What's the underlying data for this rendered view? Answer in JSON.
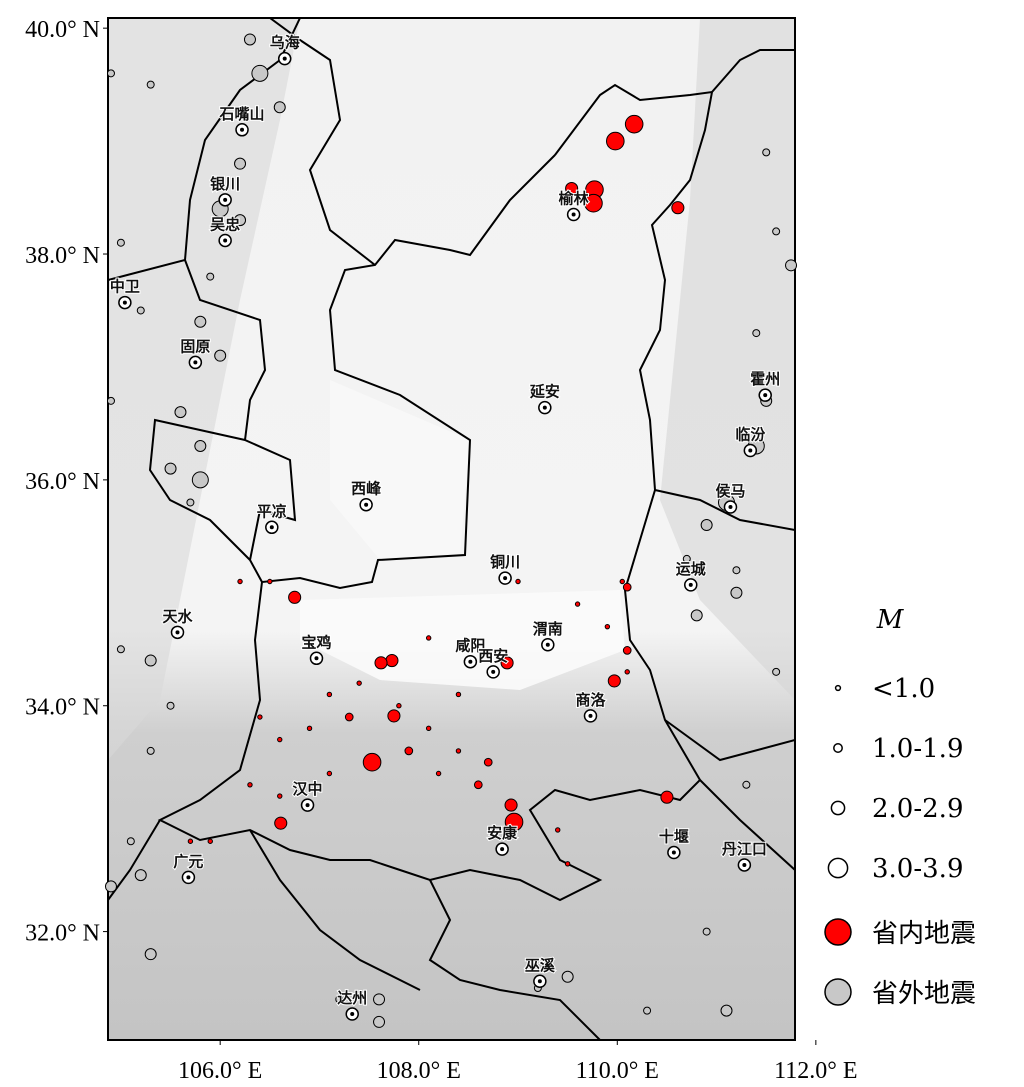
{
  "map": {
    "lon_range": [
      104.87,
      111.79
    ],
    "lat_range": [
      31.04,
      40.09
    ],
    "lon_ticks": [
      {
        "value": 106,
        "label": "106.0° E"
      },
      {
        "value": 108,
        "label": "108.0° E"
      },
      {
        "value": 110,
        "label": "110.0° E"
      },
      {
        "value": 112,
        "label": "112.0° E"
      }
    ],
    "lat_ticks": [
      {
        "value": 32,
        "label": "32.0° N"
      },
      {
        "value": 34,
        "label": "34.0° N"
      },
      {
        "value": 36,
        "label": "36.0° N"
      },
      {
        "value": 38,
        "label": "38.0° N"
      },
      {
        "value": 40,
        "label": "40.0° N"
      }
    ],
    "cities": [
      {
        "name": "乌海",
        "lon": 106.65,
        "lat": 39.73
      },
      {
        "name": "石嘴山",
        "lon": 106.22,
        "lat": 39.1
      },
      {
        "name": "银川",
        "lon": 106.05,
        "lat": 38.48
      },
      {
        "name": "吴忠",
        "lon": 106.05,
        "lat": 38.12
      },
      {
        "name": "中卫",
        "lon": 105.04,
        "lat": 37.57
      },
      {
        "name": "固原",
        "lon": 105.75,
        "lat": 37.04
      },
      {
        "name": "平凉",
        "lon": 106.52,
        "lat": 35.58
      },
      {
        "name": "西峰",
        "lon": 107.47,
        "lat": 35.78
      },
      {
        "name": "延安",
        "lon": 109.27,
        "lat": 36.64
      },
      {
        "name": "榆林",
        "lon": 109.56,
        "lat": 38.35
      },
      {
        "name": "铜川",
        "lon": 108.87,
        "lat": 35.13
      },
      {
        "name": "渭南",
        "lon": 109.3,
        "lat": 34.54
      },
      {
        "name": "咸阳",
        "lon": 108.52,
        "lat": 34.39
      },
      {
        "name": "西安",
        "lon": 108.75,
        "lat": 34.3
      },
      {
        "name": "宝鸡",
        "lon": 106.97,
        "lat": 34.42
      },
      {
        "name": "天水",
        "lon": 105.57,
        "lat": 34.65
      },
      {
        "name": "商洛",
        "lon": 109.73,
        "lat": 33.91
      },
      {
        "name": "汉中",
        "lon": 106.88,
        "lat": 33.12
      },
      {
        "name": "安康",
        "lon": 108.84,
        "lat": 32.73
      },
      {
        "name": "十堰",
        "lon": 110.57,
        "lat": 32.7
      },
      {
        "name": "丹江口",
        "lon": 111.28,
        "lat": 32.59
      },
      {
        "name": "广元",
        "lon": 105.68,
        "lat": 32.48
      },
      {
        "name": "达州",
        "lon": 107.33,
        "lat": 31.27
      },
      {
        "name": "巫溪",
        "lon": 109.22,
        "lat": 31.56
      },
      {
        "name": "运城",
        "lon": 110.74,
        "lat": 35.07
      },
      {
        "name": "临汾",
        "lon": 111.34,
        "lat": 36.26
      },
      {
        "name": "霍州",
        "lon": 111.49,
        "lat": 36.75
      },
      {
        "name": "侯马",
        "lon": 111.14,
        "lat": 35.76
      }
    ],
    "quakes": {
      "inside": [
        {
          "lon": 110.17,
          "lat": 39.15,
          "m": 3.5
        },
        {
          "lon": 109.98,
          "lat": 39.0,
          "m": 3.2
        },
        {
          "lon": 109.77,
          "lat": 38.57,
          "m": 3.3
        },
        {
          "lon": 109.76,
          "lat": 38.45,
          "m": 3.3
        },
        {
          "lon": 109.54,
          "lat": 38.58,
          "m": 2.0
        },
        {
          "lon": 110.61,
          "lat": 38.41,
          "m": 2.3
        },
        {
          "lon": 107.73,
          "lat": 34.4,
          "m": 2.8
        },
        {
          "lon": 107.62,
          "lat": 34.38,
          "m": 2.6
        },
        {
          "lon": 108.89,
          "lat": 34.38,
          "m": 2.4
        },
        {
          "lon": 109.97,
          "lat": 34.22,
          "m": 2.3
        },
        {
          "lon": 107.75,
          "lat": 33.91,
          "m": 2.4
        },
        {
          "lon": 107.53,
          "lat": 33.5,
          "m": 3.4
        },
        {
          "lon": 108.96,
          "lat": 32.97,
          "m": 3.5
        },
        {
          "lon": 108.93,
          "lat": 33.12,
          "m": 2.4
        },
        {
          "lon": 106.75,
          "lat": 34.96,
          "m": 2.4
        },
        {
          "lon": 106.61,
          "lat": 32.96,
          "m": 2.2
        },
        {
          "lon": 110.5,
          "lat": 33.19,
          "m": 2.1
        },
        {
          "lon": 110.1,
          "lat": 34.49,
          "m": 1.8
        },
        {
          "lon": 106.4,
          "lat": 33.9,
          "m": 0.8
        },
        {
          "lon": 106.6,
          "lat": 33.7,
          "m": 0.8
        },
        {
          "lon": 106.9,
          "lat": 33.8,
          "m": 0.8
        },
        {
          "lon": 107.1,
          "lat": 34.1,
          "m": 0.8
        },
        {
          "lon": 107.3,
          "lat": 33.9,
          "m": 1.2
        },
        {
          "lon": 107.4,
          "lat": 34.2,
          "m": 0.8
        },
        {
          "lon": 107.8,
          "lat": 34.0,
          "m": 0.8
        },
        {
          "lon": 107.9,
          "lat": 33.6,
          "m": 1.2
        },
        {
          "lon": 108.1,
          "lat": 33.8,
          "m": 0.8
        },
        {
          "lon": 108.2,
          "lat": 33.4,
          "m": 0.8
        },
        {
          "lon": 108.4,
          "lat": 33.6,
          "m": 0.8
        },
        {
          "lon": 108.4,
          "lat": 34.1,
          "m": 0.8
        },
        {
          "lon": 108.6,
          "lat": 33.3,
          "m": 1.2
        },
        {
          "lon": 108.1,
          "lat": 34.6,
          "m": 0.8
        },
        {
          "lon": 109.6,
          "lat": 34.9,
          "m": 0.8
        },
        {
          "lon": 109.9,
          "lat": 34.7,
          "m": 0.8
        },
        {
          "lon": 110.1,
          "lat": 34.3,
          "m": 0.8
        },
        {
          "lon": 106.3,
          "lat": 33.3,
          "m": 0.8
        },
        {
          "lon": 106.6,
          "lat": 33.2,
          "m": 0.8
        },
        {
          "lon": 107.1,
          "lat": 33.4,
          "m": 0.8
        },
        {
          "lon": 109.4,
          "lat": 32.9,
          "m": 0.8
        },
        {
          "lon": 109.5,
          "lat": 32.6,
          "m": 0.8
        },
        {
          "lon": 106.2,
          "lat": 35.1,
          "m": 0.8
        },
        {
          "lon": 106.5,
          "lat": 35.1,
          "m": 0.8
        },
        {
          "lon": 110.1,
          "lat": 35.05,
          "m": 1.2
        },
        {
          "lon": 110.05,
          "lat": 35.1,
          "m": 0.8
        },
        {
          "lon": 105.9,
          "lat": 32.8,
          "m": 0.8
        },
        {
          "lon": 105.7,
          "lat": 32.8,
          "m": 0.8
        },
        {
          "lon": 108.7,
          "lat": 33.5,
          "m": 1.2
        },
        {
          "lon": 109.0,
          "lat": 35.1,
          "m": 0.8
        }
      ],
      "outside": [
        {
          "lon": 106.3,
          "lat": 39.9,
          "m": 2.8
        },
        {
          "lon": 106.4,
          "lat": 39.6,
          "m": 3.1
        },
        {
          "lon": 106.6,
          "lat": 39.3,
          "m": 2.9
        },
        {
          "lon": 106.2,
          "lat": 38.8,
          "m": 2.6
        },
        {
          "lon": 106.0,
          "lat": 38.4,
          "m": 3.2
        },
        {
          "lon": 106.2,
          "lat": 38.3,
          "m": 2.5
        },
        {
          "lon": 105.9,
          "lat": 37.8,
          "m": 1.5
        },
        {
          "lon": 105.8,
          "lat": 37.4,
          "m": 2.8
        },
        {
          "lon": 106.0,
          "lat": 37.1,
          "m": 2.5
        },
        {
          "lon": 105.6,
          "lat": 36.6,
          "m": 2.7
        },
        {
          "lon": 105.8,
          "lat": 36.3,
          "m": 2.4
        },
        {
          "lon": 105.5,
          "lat": 36.1,
          "m": 2.9
        },
        {
          "lon": 105.7,
          "lat": 35.8,
          "m": 1.5
        },
        {
          "lon": 104.9,
          "lat": 36.7,
          "m": 1.2
        },
        {
          "lon": 105.2,
          "lat": 37.5,
          "m": 1.4
        },
        {
          "lon": 105.0,
          "lat": 38.1,
          "m": 1.0
        },
        {
          "lon": 104.9,
          "lat": 39.6,
          "m": 1.5
        },
        {
          "lon": 105.3,
          "lat": 39.5,
          "m": 1.6
        },
        {
          "lon": 104.9,
          "lat": 32.4,
          "m": 2.6
        },
        {
          "lon": 105.2,
          "lat": 32.5,
          "m": 2.8
        },
        {
          "lon": 105.1,
          "lat": 32.8,
          "m": 1.3
        },
        {
          "lon": 105.3,
          "lat": 31.8,
          "m": 2.2
        },
        {
          "lon": 105.0,
          "lat": 34.5,
          "m": 1.3
        },
        {
          "lon": 105.3,
          "lat": 34.4,
          "m": 2.4
        },
        {
          "lon": 105.5,
          "lat": 34.0,
          "m": 1.5
        },
        {
          "lon": 105.3,
          "lat": 33.6,
          "m": 1.3
        },
        {
          "lon": 111.5,
          "lat": 38.9,
          "m": 1.5
        },
        {
          "lon": 111.6,
          "lat": 38.2,
          "m": 1.3
        },
        {
          "lon": 111.75,
          "lat": 37.9,
          "m": 2.8
        },
        {
          "lon": 111.4,
          "lat": 37.3,
          "m": 1.2
        },
        {
          "lon": 111.5,
          "lat": 36.7,
          "m": 2.5
        },
        {
          "lon": 111.4,
          "lat": 36.3,
          "m": 3.0
        },
        {
          "lon": 111.1,
          "lat": 35.8,
          "m": 3.1
        },
        {
          "lon": 110.9,
          "lat": 35.6,
          "m": 2.1
        },
        {
          "lon": 110.7,
          "lat": 35.3,
          "m": 1.3
        },
        {
          "lon": 111.2,
          "lat": 35.0,
          "m": 2.6
        },
        {
          "lon": 110.8,
          "lat": 34.8,
          "m": 2.2
        },
        {
          "lon": 111.2,
          "lat": 35.2,
          "m": 1.5
        },
        {
          "lon": 111.6,
          "lat": 34.3,
          "m": 1.0
        },
        {
          "lon": 111.3,
          "lat": 33.3,
          "m": 1.2
        },
        {
          "lon": 110.9,
          "lat": 32.0,
          "m": 1.2
        },
        {
          "lon": 111.1,
          "lat": 31.3,
          "m": 2.8
        },
        {
          "lon": 109.2,
          "lat": 31.5,
          "m": 1.8
        },
        {
          "lon": 109.5,
          "lat": 31.6,
          "m": 2.1
        },
        {
          "lon": 107.6,
          "lat": 31.4,
          "m": 2.7
        },
        {
          "lon": 107.2,
          "lat": 31.4,
          "m": 1.1
        },
        {
          "lon": 107.6,
          "lat": 31.2,
          "m": 2.5
        },
        {
          "lon": 110.3,
          "lat": 31.3,
          "m": 1.1
        },
        {
          "lon": 105.8,
          "lat": 36.0,
          "m": 3.2
        }
      ]
    }
  },
  "legend": {
    "title": "M",
    "sizes": [
      {
        "label": "<1.0",
        "m": 0.5
      },
      {
        "label": "1.0-1.9",
        "m": 1.5
      },
      {
        "label": "2.0-2.9",
        "m": 2.5
      },
      {
        "label": "3.0-3.9",
        "m": 3.5
      }
    ],
    "inside": {
      "label": "省内地震",
      "color": "#ff0000"
    },
    "outside": {
      "label": "省外地震",
      "color": "#c8c8c8"
    }
  }
}
